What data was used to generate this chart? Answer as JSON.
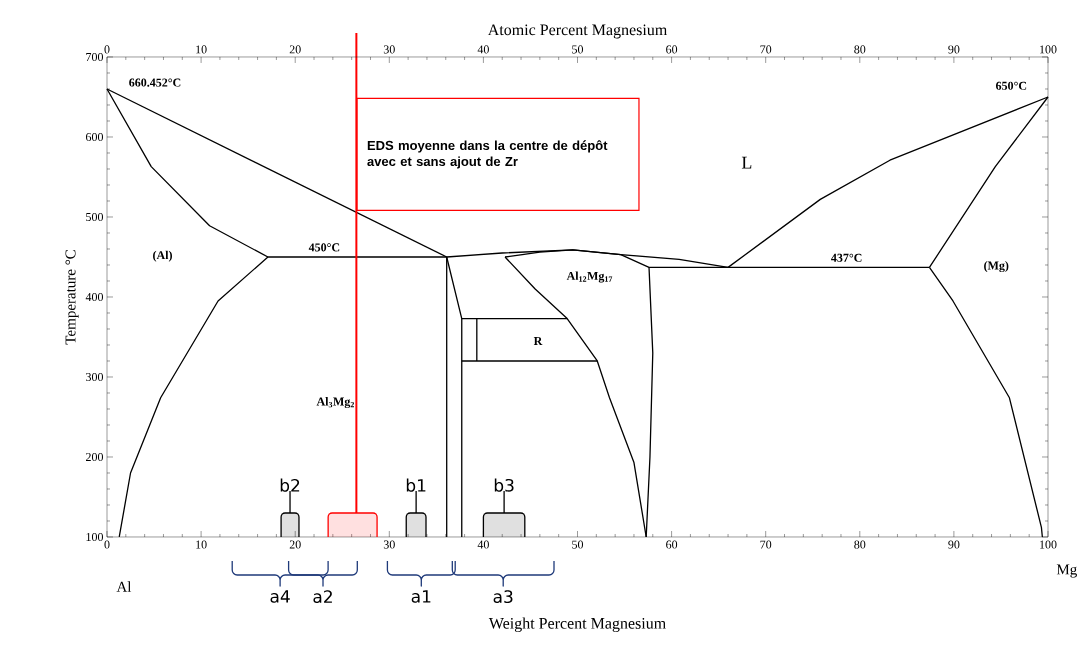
{
  "chart_data": {
    "type": "line",
    "xlabel": "Weight Percent Magnesium",
    "x2label": "Atomic Percent Magnesium",
    "ylabel": "Temperature °C",
    "xlim": [
      0,
      100
    ],
    "ylim": [
      100,
      700
    ],
    "xticks": [
      0,
      10,
      20,
      30,
      40,
      50,
      60,
      70,
      80,
      90,
      100
    ],
    "yticks": [
      100,
      200,
      300,
      400,
      500,
      600,
      700
    ],
    "x2lim": [
      0,
      100
    ],
    "x2ticks": [
      0,
      10,
      20,
      30,
      40,
      50,
      60,
      70,
      80,
      90,
      100
    ],
    "series": [
      {
        "color": "#000000",
        "x": [
          0,
          36.1
        ],
        "values": [
          660,
          450
        ]
      },
      {
        "color": "#000000",
        "x": [
          0,
          4.7,
          10.9,
          17.1
        ],
        "values": [
          660,
          563,
          489,
          450
        ]
      },
      {
        "color": "#000000",
        "x": [
          17.1,
          11.8,
          5.7,
          2.5,
          1.3
        ],
        "values": [
          450,
          395,
          274,
          180,
          100
        ]
      },
      {
        "color": "#000000",
        "x": [
          17.1,
          36.1,
          42,
          49.5,
          54.6,
          60.8,
          66.0
        ],
        "values": [
          450,
          450,
          455,
          459,
          453,
          447,
          437
        ]
      },
      {
        "color": "#000000",
        "x": [
          36.1,
          36.1
        ],
        "values": [
          450,
          100
        ]
      },
      {
        "color": "#000000",
        "x": [
          36.1,
          37.7,
          37.7
        ],
        "values": [
          450,
          373,
          100
        ]
      },
      {
        "color": "#000000",
        "x": [
          42.3,
          46,
          49.5,
          54.6,
          57.6,
          87.4
        ],
        "values": [
          450,
          456,
          459,
          453,
          437,
          437
        ]
      },
      {
        "color": "#000000",
        "x": [
          42.3,
          45.5,
          48.9,
          52.1,
          53.4,
          56.0,
          57.3
        ],
        "values": [
          450,
          410,
          373,
          320,
          274,
          193,
          100
        ]
      },
      {
        "color": "#000000",
        "x": [
          57.6,
          58.0,
          57.7,
          57.3
        ],
        "values": [
          437,
          330,
          200,
          100
        ]
      },
      {
        "color": "#000000",
        "x": [
          66.0,
          75.8,
          83.2,
          100
        ],
        "values": [
          437,
          522,
          571,
          650
        ]
      },
      {
        "color": "#000000",
        "x": [
          87.4,
          94.4,
          100
        ],
        "values": [
          437,
          563,
          650
        ]
      },
      {
        "color": "#000000",
        "x": [
          87.4,
          89.9,
          95.9,
          99.3,
          99.4
        ],
        "values": [
          437,
          395,
          274,
          112,
          100
        ]
      },
      {
        "color": "#000000",
        "x": [
          37.7,
          48.9
        ],
        "values": [
          373,
          373
        ]
      },
      {
        "color": "#000000",
        "x": [
          37.7,
          52.1
        ],
        "values": [
          320,
          320
        ]
      },
      {
        "color": "#000000",
        "x": [
          39.3,
          39.3
        ],
        "values": [
          373,
          320
        ]
      }
    ],
    "ref_lines": [
      {
        "axis": "x",
        "value": 26.5,
        "color": "#ff0000"
      }
    ],
    "bands": [
      {
        "axis": "x",
        "from": 18.5,
        "to": 20.4,
        "label": "b2",
        "color": "#000000"
      },
      {
        "axis": "x",
        "from": 23.5,
        "to": 28.7,
        "color": "#ff0000"
      },
      {
        "axis": "x",
        "from": 31.8,
        "to": 33.9,
        "label": "b1",
        "color": "#000000"
      },
      {
        "axis": "x",
        "from": 40.0,
        "to": 44.4,
        "label": "b3",
        "color": "#000000"
      }
    ],
    "annotations": [
      "EDS moyenne dans la centre de dépôt avec et sans ajout de Zr",
      "Al",
      "Mg",
      "660.452°C",
      "650°C",
      "450°C",
      "437°C",
      "(Al)",
      "(Mg)",
      "L",
      "Al$_{12}$Mg$_{17}$",
      "R",
      "Al$_{3}$Mg$_{2}$",
      "a4",
      "a2",
      "a1",
      "a3"
    ]
  }
}
